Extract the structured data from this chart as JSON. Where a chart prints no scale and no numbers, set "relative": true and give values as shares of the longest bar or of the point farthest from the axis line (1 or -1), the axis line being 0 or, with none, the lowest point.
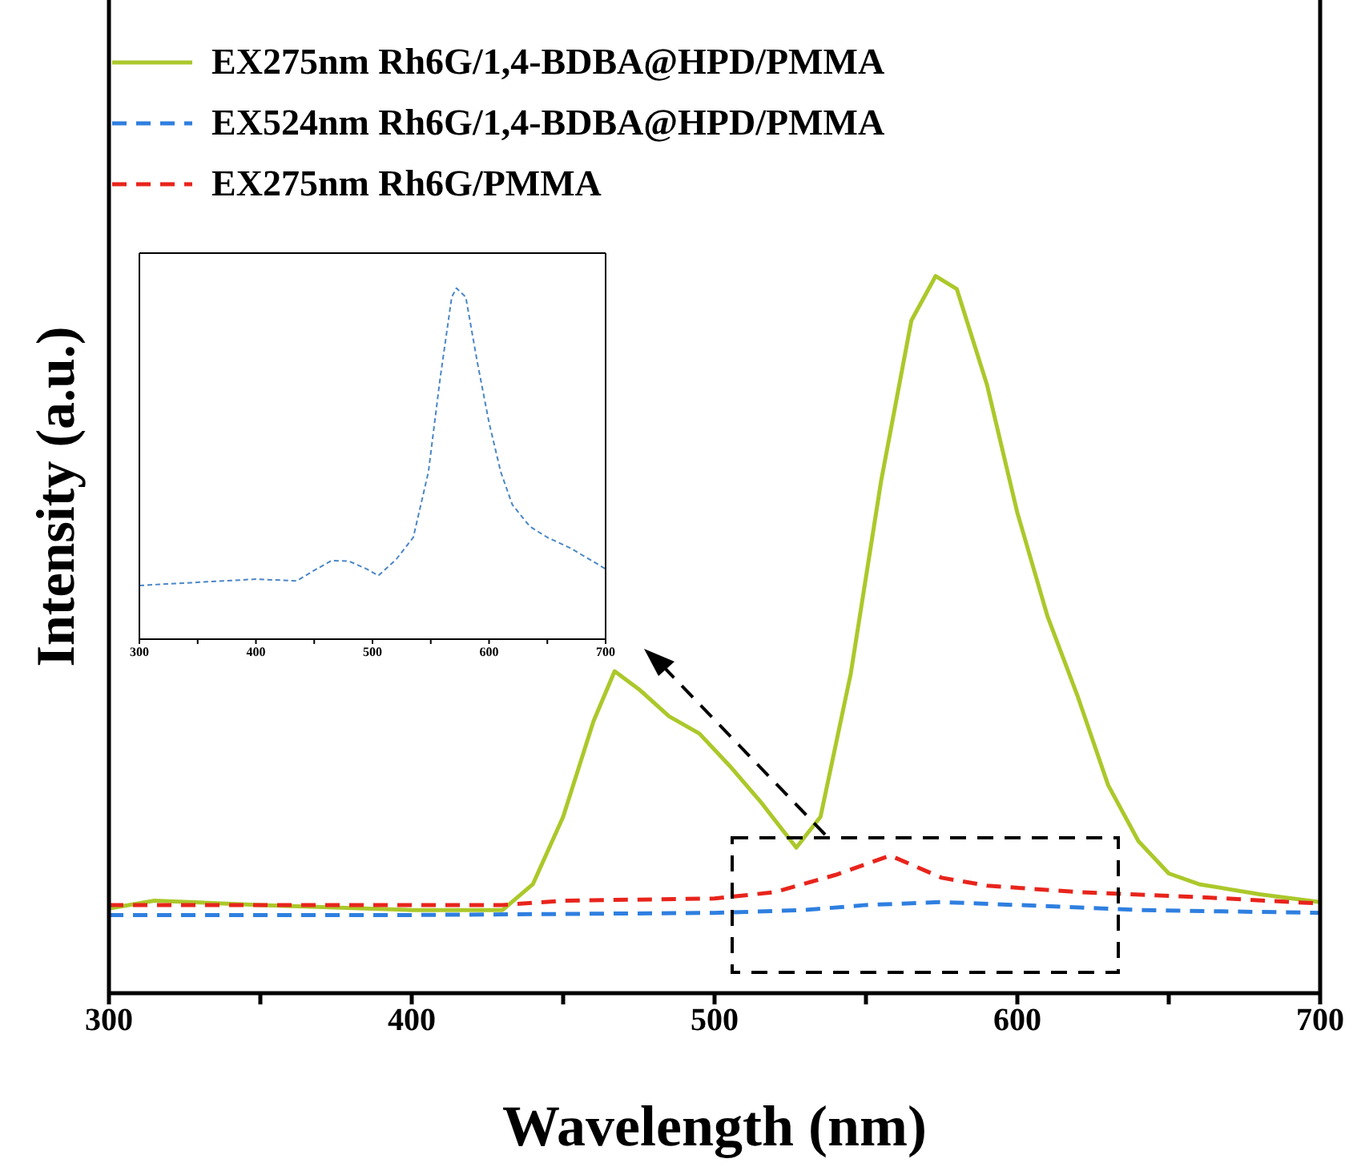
{
  "chart_data": [
    {
      "type": "line",
      "xlabel": "Wavelength (nm)",
      "ylabel": "Intensity (a.u.)",
      "relative": true,
      "xlim": [
        300,
        700
      ],
      "xticks": [
        300,
        {
          "value": 350,
          "label": null
        },
        400,
        {
          "value": 450,
          "label": null
        },
        500,
        {
          "value": 550,
          "label": null
        },
        600,
        {
          "value": 650,
          "label": null
        },
        700
      ],
      "legend": "top left",
      "marker": "none",
      "series": [
        {
          "name": "EX275nm Rh6G/1,4-BDBA@HPD/PMMA",
          "color": "#abc82a",
          "line_style": "solid",
          "x": [
            300,
            315,
            350,
            400,
            430,
            440,
            450,
            460,
            467,
            475,
            485,
            495,
            505,
            515,
            527,
            535,
            545,
            555,
            565,
            573,
            580,
            590,
            600,
            610,
            620,
            630,
            640,
            650,
            660,
            680,
            700
          ],
          "values": [
            0.118,
            0.129,
            0.123,
            0.116,
            0.116,
            0.152,
            0.246,
            0.379,
            0.449,
            0.424,
            0.386,
            0.362,
            0.317,
            0.268,
            0.203,
            0.246,
            0.446,
            0.714,
            0.938,
            1.0,
            0.982,
            0.848,
            0.67,
            0.525,
            0.413,
            0.29,
            0.212,
            0.167,
            0.152,
            0.138,
            0.127
          ]
        },
        {
          "name": "EX524nm Rh6G/1,4-BDBA@HPD/PMMA",
          "color": "#2f7fe0",
          "line_style": "dashed",
          "x": [
            300,
            400,
            500,
            530,
            550,
            575,
            600,
            640,
            700
          ],
          "values": [
            0.109,
            0.109,
            0.112,
            0.116,
            0.123,
            0.127,
            0.123,
            0.116,
            0.112
          ]
        },
        {
          "name": "EX275nm Rh6G/PMMA",
          "color": "#e8241c",
          "line_style": "dashed",
          "x": [
            300,
            430,
            450,
            500,
            520,
            540,
            558,
            575,
            590,
            620,
            660,
            700
          ],
          "values": [
            0.123,
            0.123,
            0.129,
            0.132,
            0.141,
            0.165,
            0.192,
            0.161,
            0.15,
            0.141,
            0.134,
            0.125
          ]
        }
      ]
    },
    {
      "type": "line",
      "relative": true,
      "xlim": [
        300,
        700
      ],
      "xticks": [
        300,
        {
          "value": 350,
          "label": null
        },
        400,
        {
          "value": 450,
          "label": null
        },
        500,
        {
          "value": 550,
          "label": null
        },
        600,
        {
          "value": 650,
          "label": null
        },
        700
      ],
      "tick_labels": "x",
      "marker": "none",
      "series": [
        {
          "color": "#4a86c8",
          "line_style": "dashed",
          "x": [
            300,
            400,
            435,
            450,
            465,
            480,
            495,
            505,
            520,
            535,
            548,
            558,
            568,
            572,
            580,
            590,
            600,
            610,
            620,
            635,
            650,
            670,
            690,
            700
          ],
          "values": [
            0.153,
            0.171,
            0.166,
            0.196,
            0.224,
            0.222,
            0.2,
            0.181,
            0.226,
            0.29,
            0.477,
            0.742,
            0.975,
            1.0,
            0.975,
            0.788,
            0.617,
            0.477,
            0.383,
            0.321,
            0.29,
            0.259,
            0.22,
            0.2
          ]
        }
      ]
    }
  ]
}
